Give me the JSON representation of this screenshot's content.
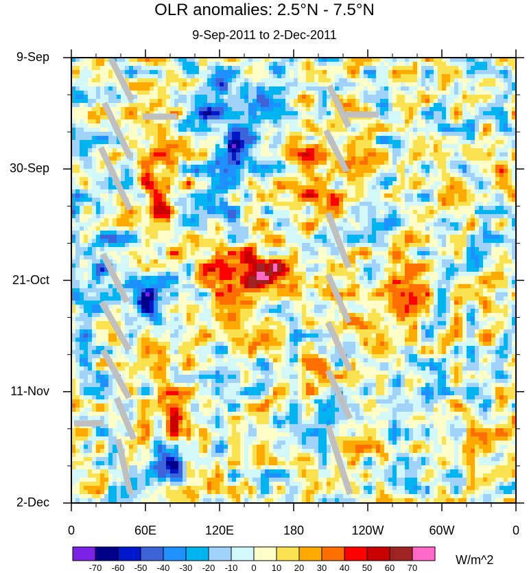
{
  "chart_data": {
    "type": "heatmap",
    "title": "OLR anomalies: 2.5°N - 7.5°N",
    "subtitle": "9-Sep-2011 to 2-Dec-2011",
    "x_ticks": [
      "0",
      "60E",
      "120E",
      "180",
      "120W",
      "60W",
      "0"
    ],
    "y_ticks": [
      "9-Sep",
      "30-Sep",
      "21-Oct",
      "11-Nov",
      "2-Dec"
    ],
    "colorbar": {
      "levels": [
        -70,
        -60,
        -50,
        -40,
        -30,
        -20,
        -10,
        0,
        10,
        20,
        30,
        40,
        50,
        60,
        70
      ],
      "colors": [
        "#7b22e6",
        "#00008b",
        "#0018cc",
        "#3c64d8",
        "#1e90ff",
        "#00b4f0",
        "#a0d2fa",
        "#d2f8fa",
        "#fffec8",
        "#fae150",
        "#ffaa00",
        "#ff6e00",
        "#ff0000",
        "#c80000",
        "#a02323",
        "#ff69c8"
      ],
      "units": "W/m^2"
    },
    "missing_color": "#c0c0c0",
    "grid": false
  }
}
